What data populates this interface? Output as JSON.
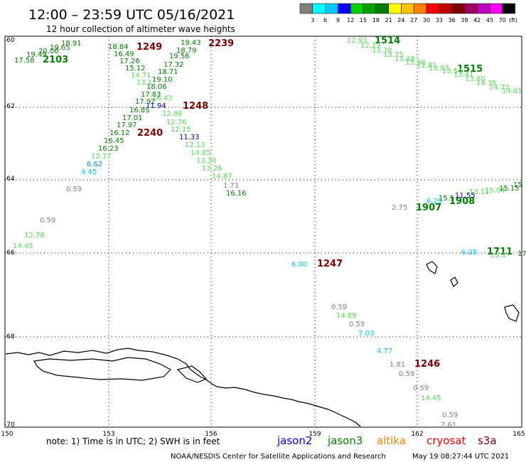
{
  "header": {
    "title": "12:00 – 23:59 UTC 05/16/2021",
    "subtitle": "12 hour collection of altimeter wave heights"
  },
  "scale": {
    "colors": [
      "#808080",
      "#00ffff",
      "#00c8ff",
      "#0000ff",
      "#00d000",
      "#00a000",
      "#008000",
      "#ffff00",
      "#ffc000",
      "#ff8000",
      "#ff0000",
      "#c00000",
      "#800000",
      "#a00060",
      "#c000c0",
      "#ff00ff",
      "#000000"
    ],
    "labels": [
      "3",
      "6",
      "9",
      "12",
      "15",
      "18",
      "21",
      "24",
      "27",
      "30",
      "33",
      "36",
      "39",
      "42",
      "45",
      "70",
      "(ft)"
    ]
  },
  "axes": {
    "lat_labels": [
      "-60",
      "-62",
      "-64",
      "-66",
      "-68",
      "-70"
    ],
    "lon_labels": [
      "150",
      "153",
      "156",
      "159",
      "162",
      "165"
    ]
  },
  "orbits": [
    {
      "id": "2103",
      "color": "#008000"
    },
    {
      "id": "1249",
      "color": "#800000"
    },
    {
      "id": "2239",
      "color": "#800000"
    },
    {
      "id": "1248",
      "color": "#800000"
    },
    {
      "id": "2240",
      "color": "#800000"
    },
    {
      "id": "1514",
      "color": "#008000"
    },
    {
      "id": "1515",
      "color": "#008000"
    },
    {
      "id": "1907",
      "color": "#008000"
    },
    {
      "id": "1908",
      "color": "#008000"
    },
    {
      "id": "1711",
      "color": "#008000"
    },
    {
      "id": "1247",
      "color": "#800000"
    },
    {
      "id": "1246",
      "color": "#800000"
    }
  ],
  "readings": [
    {
      "v": "18.91",
      "c": "#008000"
    },
    {
      "v": "19.65",
      "c": "#008000"
    },
    {
      "v": "20.00",
      "c": "#008000"
    },
    {
      "v": "19.49",
      "c": "#008000"
    },
    {
      "v": "17.58",
      "c": "#008000"
    },
    {
      "v": "18.84",
      "c": "#008000"
    },
    {
      "v": "16.49",
      "c": "#008000"
    },
    {
      "v": "17.26",
      "c": "#008000"
    },
    {
      "v": "15.12",
      "c": "#008000"
    },
    {
      "v": "14.71",
      "c": "#50dc50"
    },
    {
      "v": "13.1",
      "c": "#50dc50"
    },
    {
      "v": "19.43",
      "c": "#008000"
    },
    {
      "v": "18.79",
      "c": "#008000"
    },
    {
      "v": "19.56",
      "c": "#008000"
    },
    {
      "v": "17.32",
      "c": "#008000"
    },
    {
      "v": "18.71",
      "c": "#008000"
    },
    {
      "v": "19.10",
      "c": "#008000"
    },
    {
      "v": "18.06",
      "c": "#008000"
    },
    {
      "v": "17.83",
      "c": "#008000"
    },
    {
      "v": "17.92",
      "c": "#008000"
    },
    {
      "v": "16.43",
      "c": "#50dc50"
    },
    {
      "v": "11.94",
      "c": "#0000c8"
    },
    {
      "v": "16.85",
      "c": "#008000"
    },
    {
      "v": "17.01",
      "c": "#008000"
    },
    {
      "v": "17.97",
      "c": "#008000"
    },
    {
      "v": "16.12",
      "c": "#008000"
    },
    {
      "v": "16.45",
      "c": "#008000"
    },
    {
      "v": "16.23",
      "c": "#008000"
    },
    {
      "v": "12.77",
      "c": "#50dc50"
    },
    {
      "v": "6.62",
      "c": "#0096c8"
    },
    {
      "v": "4.45",
      "c": "#00c8ff"
    },
    {
      "v": "12.86",
      "c": "#50dc50"
    },
    {
      "v": "12.76",
      "c": "#50dc50"
    },
    {
      "v": "12.15",
      "c": "#50dc50"
    },
    {
      "v": "11.33",
      "c": "#0000c8"
    },
    {
      "v": "12.13",
      "c": "#50dc50"
    },
    {
      "v": "14.85",
      "c": "#50dc50"
    },
    {
      "v": "13.30",
      "c": "#50dc50"
    },
    {
      "v": "13.26",
      "c": "#50dc50"
    },
    {
      "v": "14.87",
      "c": "#50dc50"
    },
    {
      "v": "1.71",
      "c": "#808080"
    },
    {
      "v": "16.16",
      "c": "#008000"
    },
    {
      "v": "0.59",
      "c": "#808080"
    },
    {
      "v": "0.59",
      "c": "#808080"
    },
    {
      "v": "12.78",
      "c": "#50dc50"
    },
    {
      "v": "14.45",
      "c": "#50dc50"
    },
    {
      "v": "12.93",
      "c": "#50dc50"
    },
    {
      "v": "12.19",
      "c": "#50dc50"
    },
    {
      "v": "13.38",
      "c": "#50dc50"
    },
    {
      "v": "13.75",
      "c": "#50dc50"
    },
    {
      "v": "13.48",
      "c": "#50dc50"
    },
    {
      "v": "13.98",
      "c": "#50dc50"
    },
    {
      "v": "12.81",
      "c": "#50dc50"
    },
    {
      "v": "13.93",
      "c": "#50dc50"
    },
    {
      "v": "13.54",
      "c": "#50dc50"
    },
    {
      "v": "13.41",
      "c": "#50dc50"
    },
    {
      "v": "13.80",
      "c": "#50dc50"
    },
    {
      "v": "14.35",
      "c": "#50dc50"
    },
    {
      "v": "14.72",
      "c": "#50dc50"
    },
    {
      "v": "14.81",
      "c": "#50dc50"
    },
    {
      "v": "2.75",
      "c": "#808080"
    },
    {
      "v": "6.29",
      "c": "#00c8ff"
    },
    {
      "v": "15.5",
      "c": "#008000"
    },
    {
      "v": "11.55",
      "c": "#0000c8"
    },
    {
      "v": "13.11",
      "c": "#50dc50"
    },
    {
      "v": "15.04",
      "c": "#50dc50"
    },
    {
      "v": "15.15",
      "c": "#008000"
    },
    {
      "v": "15",
      "c": "#008000"
    },
    {
      "v": "6.08",
      "c": "#00c8ff"
    },
    {
      "v": "13.1",
      "c": "#50dc50"
    },
    {
      "v": "17",
      "c": "#008000"
    },
    {
      "v": "6.00",
      "c": "#00c8ff"
    },
    {
      "v": "0.59",
      "c": "#808080"
    },
    {
      "v": "14.89",
      "c": "#50dc50"
    },
    {
      "v": "0.59",
      "c": "#808080"
    },
    {
      "v": "7.03",
      "c": "#00c8ff"
    },
    {
      "v": "4.77",
      "c": "#00c8ff"
    },
    {
      "v": "1.81",
      "c": "#808080"
    },
    {
      "v": "0.59",
      "c": "#808080"
    },
    {
      "v": "0.59",
      "c": "#808080"
    },
    {
      "v": "14.45",
      "c": "#50dc50"
    },
    {
      "v": "0.59",
      "c": "#808080"
    },
    {
      "v": "2.61",
      "c": "#808080"
    }
  ],
  "footer": {
    "note": "note:  1) Time is in UTC;  2) SWH is in feet",
    "satellites": [
      {
        "name": "jason2",
        "color": "#0000ff"
      },
      {
        "name": "jason3",
        "color": "#008000"
      },
      {
        "name": "altika",
        "color": "#ff8000"
      },
      {
        "name": "cryosat",
        "color": "#ff0000"
      },
      {
        "name": "s3a",
        "color": "#800000"
      }
    ],
    "credit": "NOAA/NESDIS Center for Satellite Applications and Research",
    "timestamp": "May 19 08:27:44 UTC 2021"
  }
}
